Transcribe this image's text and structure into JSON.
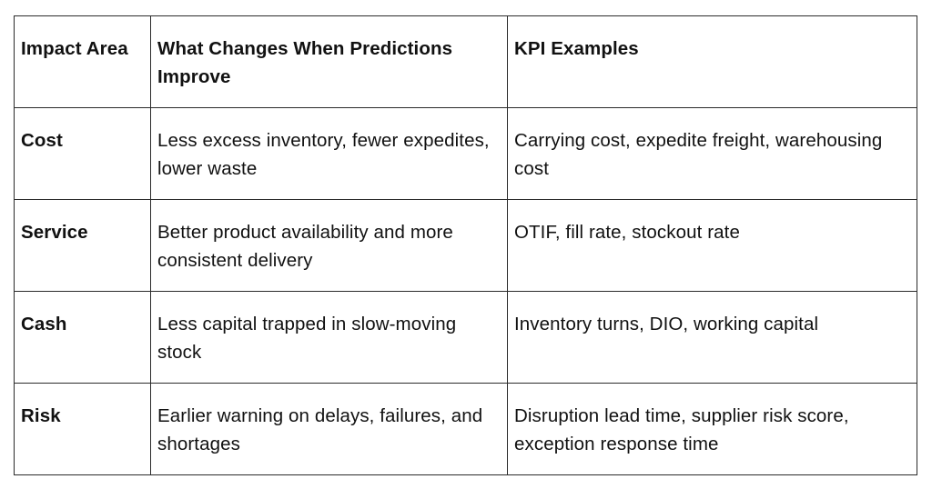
{
  "table": {
    "headers": [
      "Impact Area",
      "What Changes When Predictions Improve",
      "KPI Examples"
    ],
    "rows": [
      {
        "area": "Cost",
        "change": "Less excess inventory, fewer expedites, lower waste",
        "kpi": "Carrying cost, expedite freight, warehousing cost"
      },
      {
        "area": "Service",
        "change": "Better product availability and more consistent delivery",
        "kpi": "OTIF, fill rate, stockout rate"
      },
      {
        "area": "Cash",
        "change": "Less capital trapped in slow-moving stock",
        "kpi": "Inventory turns, DIO, working capital"
      },
      {
        "area": "Risk",
        "change": "Earlier warning on delays, failures, and shortages",
        "kpi": "Disruption lead time, supplier risk score, exception response time"
      }
    ]
  }
}
